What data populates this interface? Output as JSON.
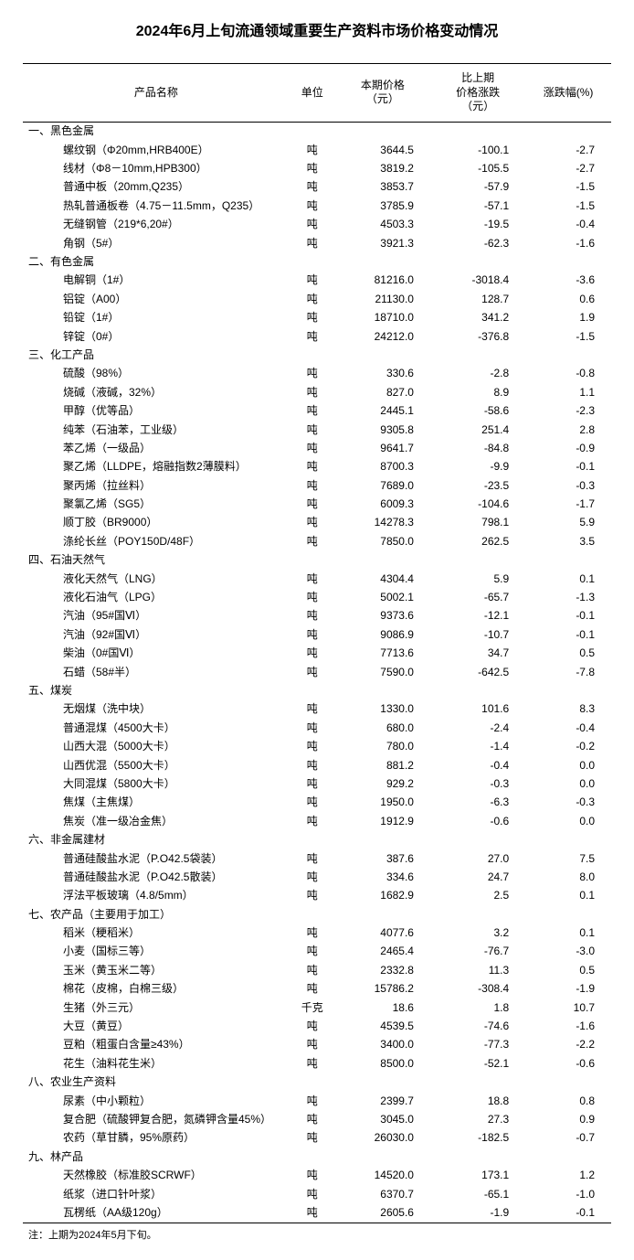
{
  "title": "2024年6月上旬流通领域重要生产资料市场价格变动情况",
  "headers": {
    "name": "产品名称",
    "unit": "单位",
    "price": "本期价格\n（元）",
    "change": "比上期\n价格涨跌\n（元）",
    "pct": "涨跌幅(%)"
  },
  "categories": [
    {
      "label": "一、黑色金属",
      "items": [
        {
          "name": "螺纹钢（Φ20mm,HRB400E）",
          "unit": "吨",
          "price": "3644.5",
          "change": "-100.1",
          "pct": "-2.7"
        },
        {
          "name": "线材（Φ8－10mm,HPB300）",
          "unit": "吨",
          "price": "3819.2",
          "change": "-105.5",
          "pct": "-2.7"
        },
        {
          "name": "普通中板（20mm,Q235）",
          "unit": "吨",
          "price": "3853.7",
          "change": "-57.9",
          "pct": "-1.5"
        },
        {
          "name": "热轧普通板卷（4.75－11.5mm，Q235）",
          "unit": "吨",
          "price": "3785.9",
          "change": "-57.1",
          "pct": "-1.5"
        },
        {
          "name": "无缝钢管（219*6,20#）",
          "unit": "吨",
          "price": "4503.3",
          "change": "-19.5",
          "pct": "-0.4"
        },
        {
          "name": "角钢（5#）",
          "unit": "吨",
          "price": "3921.3",
          "change": "-62.3",
          "pct": "-1.6"
        }
      ]
    },
    {
      "label": "二、有色金属",
      "items": [
        {
          "name": "电解铜（1#）",
          "unit": "吨",
          "price": "81216.0",
          "change": "-3018.4",
          "pct": "-3.6"
        },
        {
          "name": "铝锭（A00）",
          "unit": "吨",
          "price": "21130.0",
          "change": "128.7",
          "pct": "0.6"
        },
        {
          "name": "铅锭（1#）",
          "unit": "吨",
          "price": "18710.0",
          "change": "341.2",
          "pct": "1.9"
        },
        {
          "name": "锌锭（0#）",
          "unit": "吨",
          "price": "24212.0",
          "change": "-376.8",
          "pct": "-1.5"
        }
      ]
    },
    {
      "label": "三、化工产品",
      "items": [
        {
          "name": "硫酸（98%）",
          "unit": "吨",
          "price": "330.6",
          "change": "-2.8",
          "pct": "-0.8"
        },
        {
          "name": "烧碱（液碱，32%）",
          "unit": "吨",
          "price": "827.0",
          "change": "8.9",
          "pct": "1.1"
        },
        {
          "name": "甲醇（优等品）",
          "unit": "吨",
          "price": "2445.1",
          "change": "-58.6",
          "pct": "-2.3"
        },
        {
          "name": "纯苯（石油苯，工业级）",
          "unit": "吨",
          "price": "9305.8",
          "change": "251.4",
          "pct": "2.8"
        },
        {
          "name": "苯乙烯（一级品）",
          "unit": "吨",
          "price": "9641.7",
          "change": "-84.8",
          "pct": "-0.9"
        },
        {
          "name": "聚乙烯（LLDPE，熔融指数2薄膜料）",
          "unit": "吨",
          "price": "8700.3",
          "change": "-9.9",
          "pct": "-0.1"
        },
        {
          "name": "聚丙烯（拉丝料）",
          "unit": "吨",
          "price": "7689.0",
          "change": "-23.5",
          "pct": "-0.3"
        },
        {
          "name": "聚氯乙烯（SG5）",
          "unit": "吨",
          "price": "6009.3",
          "change": "-104.6",
          "pct": "-1.7"
        },
        {
          "name": "顺丁胶（BR9000）",
          "unit": "吨",
          "price": "14278.3",
          "change": "798.1",
          "pct": "5.9"
        },
        {
          "name": "涤纶长丝（POY150D/48F）",
          "unit": "吨",
          "price": "7850.0",
          "change": "262.5",
          "pct": "3.5"
        }
      ]
    },
    {
      "label": "四、石油天然气",
      "items": [
        {
          "name": "液化天然气（LNG）",
          "unit": "吨",
          "price": "4304.4",
          "change": "5.9",
          "pct": "0.1"
        },
        {
          "name": "液化石油气（LPG）",
          "unit": "吨",
          "price": "5002.1",
          "change": "-65.7",
          "pct": "-1.3"
        },
        {
          "name": "汽油（95#国Ⅵ）",
          "unit": "吨",
          "price": "9373.6",
          "change": "-12.1",
          "pct": "-0.1"
        },
        {
          "name": "汽油（92#国Ⅵ）",
          "unit": "吨",
          "price": "9086.9",
          "change": "-10.7",
          "pct": "-0.1"
        },
        {
          "name": "柴油（0#国Ⅵ）",
          "unit": "吨",
          "price": "7713.6",
          "change": "34.7",
          "pct": "0.5"
        },
        {
          "name": "石蜡（58#半）",
          "unit": "吨",
          "price": "7590.0",
          "change": "-642.5",
          "pct": "-7.8"
        }
      ]
    },
    {
      "label": "五、煤炭",
      "items": [
        {
          "name": "无烟煤（洗中块）",
          "unit": "吨",
          "price": "1330.0",
          "change": "101.6",
          "pct": "8.3"
        },
        {
          "name": "普通混煤（4500大卡）",
          "unit": "吨",
          "price": "680.0",
          "change": "-2.4",
          "pct": "-0.4"
        },
        {
          "name": "山西大混（5000大卡）",
          "unit": "吨",
          "price": "780.0",
          "change": "-1.4",
          "pct": "-0.2"
        },
        {
          "name": "山西优混（5500大卡）",
          "unit": "吨",
          "price": "881.2",
          "change": "-0.4",
          "pct": "0.0"
        },
        {
          "name": "大同混煤（5800大卡）",
          "unit": "吨",
          "price": "929.2",
          "change": "-0.3",
          "pct": "0.0"
        },
        {
          "name": "焦煤（主焦煤）",
          "unit": "吨",
          "price": "1950.0",
          "change": "-6.3",
          "pct": "-0.3"
        },
        {
          "name": "焦炭（准一级冶金焦）",
          "unit": "吨",
          "price": "1912.9",
          "change": "-0.6",
          "pct": "0.0"
        }
      ]
    },
    {
      "label": "六、非金属建材",
      "items": [
        {
          "name": "普通硅酸盐水泥（P.O42.5袋装）",
          "unit": "吨",
          "price": "387.6",
          "change": "27.0",
          "pct": "7.5"
        },
        {
          "name": "普通硅酸盐水泥（P.O42.5散装）",
          "unit": "吨",
          "price": "334.6",
          "change": "24.7",
          "pct": "8.0"
        },
        {
          "name": "浮法平板玻璃（4.8/5mm）",
          "unit": "吨",
          "price": "1682.9",
          "change": "2.5",
          "pct": "0.1"
        }
      ]
    },
    {
      "label": "七、农产品（主要用于加工）",
      "items": [
        {
          "name": "稻米（粳稻米）",
          "unit": "吨",
          "price": "4077.6",
          "change": "3.2",
          "pct": "0.1"
        },
        {
          "name": "小麦（国标三等）",
          "unit": "吨",
          "price": "2465.4",
          "change": "-76.7",
          "pct": "-3.0"
        },
        {
          "name": "玉米（黄玉米二等）",
          "unit": "吨",
          "price": "2332.8",
          "change": "11.3",
          "pct": "0.5"
        },
        {
          "name": "棉花（皮棉，白棉三级）",
          "unit": "吨",
          "price": "15786.2",
          "change": "-308.4",
          "pct": "-1.9"
        },
        {
          "name": "生猪（外三元）",
          "unit": "千克",
          "price": "18.6",
          "change": "1.8",
          "pct": "10.7"
        },
        {
          "name": "大豆（黄豆）",
          "unit": "吨",
          "price": "4539.5",
          "change": "-74.6",
          "pct": "-1.6"
        },
        {
          "name": "豆粕（粗蛋白含量≥43%）",
          "unit": "吨",
          "price": "3400.0",
          "change": "-77.3",
          "pct": "-2.2"
        },
        {
          "name": "花生（油料花生米）",
          "unit": "吨",
          "price": "8500.0",
          "change": "-52.1",
          "pct": "-0.6"
        }
      ]
    },
    {
      "label": "八、农业生产资料",
      "items": [
        {
          "name": "尿素（中小颗粒）",
          "unit": "吨",
          "price": "2399.7",
          "change": "18.8",
          "pct": "0.8"
        },
        {
          "name": "复合肥（硫酸钾复合肥，氮磷钾含量45%）",
          "unit": "吨",
          "price": "3045.0",
          "change": "27.3",
          "pct": "0.9"
        },
        {
          "name": "农药（草甘膦，95%原药）",
          "unit": "吨",
          "price": "26030.0",
          "change": "-182.5",
          "pct": "-0.7"
        }
      ]
    },
    {
      "label": "九、林产品",
      "items": [
        {
          "name": "天然橡胶（标准胶SCRWF）",
          "unit": "吨",
          "price": "14520.0",
          "change": "173.1",
          "pct": "1.2"
        },
        {
          "name": "纸浆（进口针叶浆）",
          "unit": "吨",
          "price": "6370.7",
          "change": "-65.1",
          "pct": "-1.0"
        },
        {
          "name": "瓦楞纸（AA级120g）",
          "unit": "吨",
          "price": "2605.6",
          "change": "-1.9",
          "pct": "-0.1"
        }
      ]
    }
  ],
  "footnote": "注：上期为2024年5月下旬。"
}
